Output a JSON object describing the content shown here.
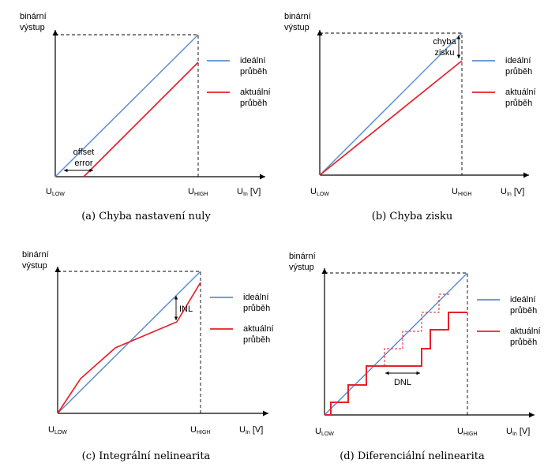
{
  "colors": {
    "ideal": "#5b8fcf",
    "actual": "#e8202a",
    "axis": "#000000"
  },
  "common": {
    "y_label_line1": "binární",
    "y_label_line2": "výstup",
    "u": "U",
    "low_sub": "LOW",
    "high_sub": "HIGH",
    "in_sub": "In",
    "unit": " [V]",
    "legend_ideal_1": "ideální",
    "legend_ideal_2": "průběh",
    "legend_actual_1": "aktuální",
    "legend_actual_2": "průběh"
  },
  "panels": [
    {
      "caption": "(a) Chyba nastavení nuly",
      "annotation_lines": [
        "offset",
        "error"
      ]
    },
    {
      "caption": "(b) Chyba zisku",
      "annotation_lines": [
        "chyba",
        "zisku"
      ]
    },
    {
      "caption": "(c) Integrální nelinearita",
      "annotation_lines": [
        "INL"
      ]
    },
    {
      "caption": "(d) Diferenciální nelinearita",
      "annotation_lines": [
        "DNL"
      ]
    }
  ]
}
